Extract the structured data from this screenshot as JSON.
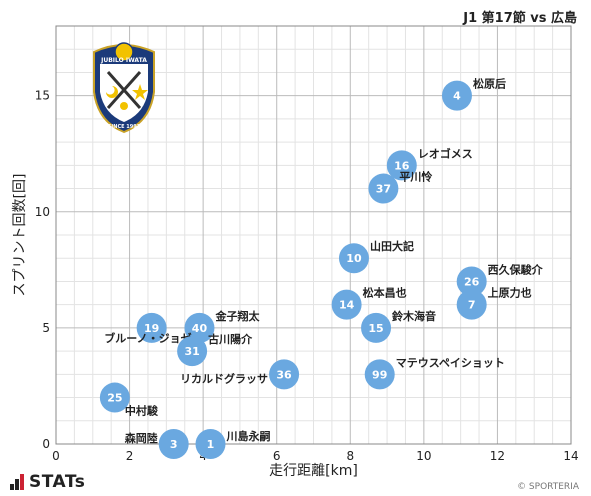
{
  "header": {
    "title": "J1 第17節 vs 広島"
  },
  "footer": {
    "brand": "STATs",
    "copyright": "© SPORTERIA"
  },
  "logo": {
    "icon": "jubilo-iwata-crest-icon",
    "text_top": "JUBILO IWATA",
    "text_bottom": "SINCE 1992"
  },
  "colors": {
    "point": "#6aa8e0",
    "grid_major": "#bbbbbb",
    "grid_minor": "#e3e3e3",
    "text": "#222222"
  },
  "chart_data": {
    "type": "scatter",
    "xlabel": "走行距離[km]",
    "ylabel": "スプリント回数[回]",
    "xlim": [
      0,
      14
    ],
    "ylim": [
      0,
      18
    ],
    "xticks": [
      0,
      2,
      4,
      6,
      8,
      10,
      12,
      14
    ],
    "yticks": [
      0,
      5,
      10,
      15
    ],
    "grid": true,
    "points": [
      {
        "number": "4",
        "name": "松原后",
        "x": 10.9,
        "y": 15,
        "label_side": "right"
      },
      {
        "number": "16",
        "name": "レオゴメス",
        "x": 9.4,
        "y": 12,
        "label_side": "right"
      },
      {
        "number": "37",
        "name": "平川怜",
        "x": 8.9,
        "y": 11,
        "label_side": "right"
      },
      {
        "number": "10",
        "name": "山田大記",
        "x": 8.1,
        "y": 8,
        "label_side": "right"
      },
      {
        "number": "26",
        "name": "西久保駿介",
        "x": 11.3,
        "y": 7,
        "label_side": "right"
      },
      {
        "number": "7",
        "name": "上原力也",
        "x": 11.3,
        "y": 6,
        "label_side": "right"
      },
      {
        "number": "14",
        "name": "松本昌也",
        "x": 7.9,
        "y": 6,
        "label_side": "right"
      },
      {
        "number": "15",
        "name": "鈴木海音",
        "x": 8.7,
        "y": 5,
        "label_side": "right"
      },
      {
        "number": "40",
        "name": "金子翔太",
        "x": 3.9,
        "y": 5,
        "label_side": "right"
      },
      {
        "number": "19",
        "name": "ブルーノ・ジョゼ",
        "x": 2.6,
        "y": 5,
        "label_side": "below-left"
      },
      {
        "number": "31",
        "name": "古川陽介",
        "x": 3.7,
        "y": 4,
        "label_side": "right"
      },
      {
        "number": "36",
        "name": "リカルドグラッサ",
        "x": 6.2,
        "y": 3,
        "label_side": "left"
      },
      {
        "number": "99",
        "name": "マテウスペイショット",
        "x": 8.8,
        "y": 3,
        "label_side": "right"
      },
      {
        "number": "25",
        "name": "中村駿",
        "x": 1.6,
        "y": 2,
        "label_side": "below-right"
      },
      {
        "number": "3",
        "name": "森岡陸",
        "x": 3.2,
        "y": 0,
        "label_side": "left"
      },
      {
        "number": "1",
        "name": "川島永嗣",
        "x": 4.2,
        "y": 0,
        "label_side": "right"
      }
    ]
  }
}
